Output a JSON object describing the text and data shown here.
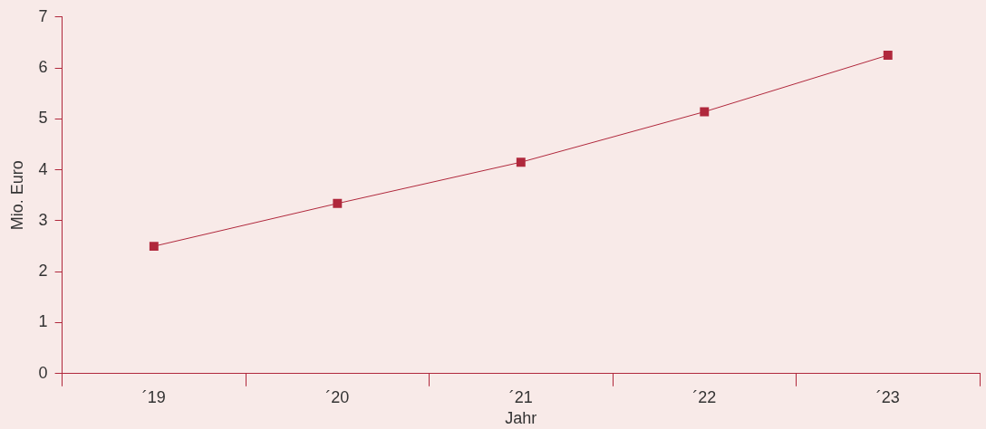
{
  "chart_data": {
    "type": "line",
    "xlabel": "Jahr",
    "ylabel": "Mio. Euro",
    "categories": [
      "´19",
      "´20",
      "´21",
      "´22",
      "´23"
    ],
    "series": [
      {
        "color": "#b0283c",
        "values": [
          2.5,
          3.34,
          4.15,
          5.14,
          6.25
        ]
      }
    ],
    "ylim": [
      0,
      7
    ],
    "yticks": [
      0,
      1,
      2,
      3,
      4,
      5,
      6,
      7
    ],
    "grid": false,
    "legend": false,
    "marker": "square",
    "line_style": "solid"
  }
}
